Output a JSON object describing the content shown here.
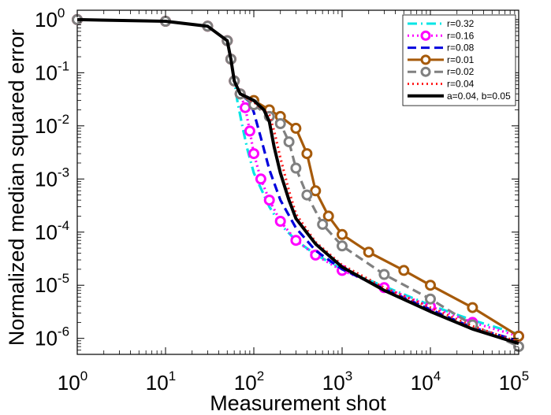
{
  "chart_data": {
    "type": "line",
    "title": "",
    "xlabel": "Measurement shot",
    "ylabel": "Normalized median squared error",
    "x_scale": "log",
    "y_scale": "log",
    "xlim": [
      1,
      100000
    ],
    "ylim": [
      5e-07,
      1.5
    ],
    "x_ticks": [
      {
        "base": "10",
        "exp": "0"
      },
      {
        "base": "10",
        "exp": "1"
      },
      {
        "base": "10",
        "exp": "2"
      },
      {
        "base": "10",
        "exp": "3"
      },
      {
        "base": "10",
        "exp": "4"
      },
      {
        "base": "10",
        "exp": "5"
      }
    ],
    "y_ticks": [
      {
        "base": "10",
        "exp": "0"
      },
      {
        "base": "10",
        "exp": "-1"
      },
      {
        "base": "10",
        "exp": "-2"
      },
      {
        "base": "10",
        "exp": "-3"
      },
      {
        "base": "10",
        "exp": "-4"
      },
      {
        "base": "10",
        "exp": "-5"
      },
      {
        "base": "10",
        "exp": "-6"
      }
    ],
    "grid": false,
    "legend_position": "top-right",
    "series": [
      {
        "name": "r=0.32",
        "color": "#00e5e5",
        "line": "dashdot",
        "marker": "none",
        "points": [
          [
            1,
            1.0
          ],
          [
            10,
            0.93
          ],
          [
            30,
            0.75
          ],
          [
            50,
            0.4
          ],
          [
            55,
            0.18
          ],
          [
            60,
            0.07
          ],
          [
            65,
            0.03
          ],
          [
            75,
            0.009
          ],
          [
            85,
            0.0035
          ],
          [
            100,
            0.0013
          ],
          [
            150,
            0.0003
          ],
          [
            200,
            0.00014
          ],
          [
            300,
            7e-05
          ],
          [
            500,
            3.8e-05
          ],
          [
            1000,
            2e-05
          ],
          [
            3000,
            9.5e-06
          ],
          [
            10000,
            4.2e-06
          ],
          [
            30000,
            2.2e-06
          ],
          [
            100000,
            1.2e-06
          ]
        ]
      },
      {
        "name": "r=0.16",
        "color": "#ff00ff",
        "line": "dotted",
        "marker": "o",
        "points": [
          [
            1,
            1.0
          ],
          [
            10,
            0.93
          ],
          [
            30,
            0.75
          ],
          [
            50,
            0.4
          ],
          [
            55,
            0.18
          ],
          [
            60,
            0.07
          ],
          [
            70,
            0.04
          ],
          [
            80,
            0.022
          ],
          [
            90,
            0.008
          ],
          [
            100,
            0.003
          ],
          [
            120,
            0.001
          ],
          [
            150,
            0.0004
          ],
          [
            200,
            0.00016
          ],
          [
            300,
            7e-05
          ],
          [
            500,
            3.7e-05
          ],
          [
            1000,
            1.9e-05
          ],
          [
            3000,
            9e-06
          ],
          [
            10000,
            4e-06
          ],
          [
            30000,
            2e-06
          ],
          [
            100000,
            1.1e-06
          ]
        ]
      },
      {
        "name": "r=0.08",
        "color": "#0000dd",
        "line": "dashed",
        "marker": "none",
        "points": [
          [
            1,
            1.0
          ],
          [
            10,
            0.93
          ],
          [
            30,
            0.75
          ],
          [
            50,
            0.4
          ],
          [
            55,
            0.18
          ],
          [
            60,
            0.07
          ],
          [
            70,
            0.04
          ],
          [
            90,
            0.028
          ],
          [
            100,
            0.018
          ],
          [
            120,
            0.006
          ],
          [
            150,
            0.0015
          ],
          [
            200,
            0.0004
          ],
          [
            300,
            0.00012
          ],
          [
            500,
            4.5e-05
          ],
          [
            1000,
            2e-05
          ],
          [
            3000,
            8.5e-06
          ],
          [
            10000,
            3.5e-06
          ],
          [
            30000,
            1.6e-06
          ],
          [
            100000,
            9e-07
          ]
        ]
      },
      {
        "name": "r=0.01",
        "color": "#a65a0a",
        "line": "solid",
        "marker": "o",
        "points": [
          [
            1,
            1.0
          ],
          [
            10,
            0.93
          ],
          [
            30,
            0.75
          ],
          [
            50,
            0.4
          ],
          [
            55,
            0.18
          ],
          [
            60,
            0.07
          ],
          [
            70,
            0.04
          ],
          [
            100,
            0.03
          ],
          [
            150,
            0.02
          ],
          [
            200,
            0.015
          ],
          [
            300,
            0.009
          ],
          [
            400,
            0.003
          ],
          [
            500,
            0.0006
          ],
          [
            700,
            0.0002
          ],
          [
            1000,
            9e-05
          ],
          [
            2000,
            4.2e-05
          ],
          [
            5000,
            1.9e-05
          ],
          [
            10000,
            1e-05
          ],
          [
            30000,
            3.8e-06
          ],
          [
            100000,
            1.1e-06
          ]
        ]
      },
      {
        "name": "r=0.02",
        "color": "#808080",
        "line": "dashed",
        "marker": "o",
        "points": [
          [
            1,
            1.0
          ],
          [
            10,
            0.93
          ],
          [
            30,
            0.75
          ],
          [
            50,
            0.4
          ],
          [
            55,
            0.18
          ],
          [
            60,
            0.07
          ],
          [
            70,
            0.04
          ],
          [
            100,
            0.025
          ],
          [
            150,
            0.015
          ],
          [
            200,
            0.011
          ],
          [
            250,
            0.005
          ],
          [
            300,
            0.0016
          ],
          [
            400,
            0.0005
          ],
          [
            600,
            0.00014
          ],
          [
            1000,
            5.5e-05
          ],
          [
            3000,
            1.6e-05
          ],
          [
            10000,
            5.5e-06
          ],
          [
            30000,
            1.8e-06
          ],
          [
            100000,
            7e-07
          ]
        ]
      },
      {
        "name": "r=0.04",
        "color": "#ff2020",
        "line": "dotted",
        "marker": "none",
        "points": [
          [
            1,
            1.0
          ],
          [
            10,
            0.93
          ],
          [
            30,
            0.75
          ],
          [
            50,
            0.4
          ],
          [
            55,
            0.18
          ],
          [
            60,
            0.07
          ],
          [
            70,
            0.04
          ],
          [
            100,
            0.028
          ],
          [
            150,
            0.016
          ],
          [
            170,
            0.008
          ],
          [
            200,
            0.0025
          ],
          [
            250,
            0.0006
          ],
          [
            300,
            0.00022
          ],
          [
            500,
            6.5e-05
          ],
          [
            1000,
            2.4e-05
          ],
          [
            3000,
            9e-06
          ],
          [
            10000,
            3.8e-06
          ],
          [
            30000,
            1.7e-06
          ],
          [
            100000,
            8.5e-07
          ]
        ]
      },
      {
        "name": "a=0.04, b=0.05",
        "color": "#000000",
        "line": "solid",
        "marker": "none",
        "points": [
          [
            1,
            1.0
          ],
          [
            10,
            0.93
          ],
          [
            30,
            0.75
          ],
          [
            50,
            0.4
          ],
          [
            55,
            0.18
          ],
          [
            60,
            0.07
          ],
          [
            70,
            0.04
          ],
          [
            100,
            0.03
          ],
          [
            130,
            0.02
          ],
          [
            150,
            0.012
          ],
          [
            170,
            0.004
          ],
          [
            200,
            0.0013
          ],
          [
            250,
            0.0004
          ],
          [
            300,
            0.00018
          ],
          [
            500,
            6e-05
          ],
          [
            1000,
            2.2e-05
          ],
          [
            3000,
            8e-06
          ],
          [
            10000,
            3.2e-06
          ],
          [
            30000,
            1.5e-06
          ],
          [
            100000,
            8e-07
          ]
        ]
      }
    ]
  }
}
